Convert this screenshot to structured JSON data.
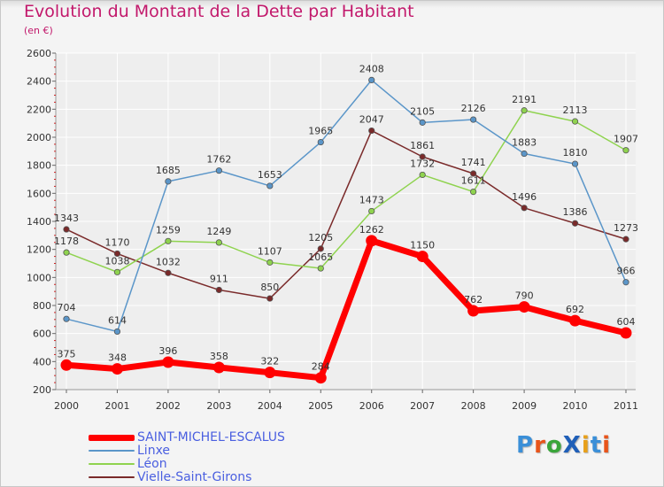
{
  "title": "Evolution du Montant de la Dette par Habitant",
  "subtitle": "(en €)",
  "logo": {
    "text": "ProXiti",
    "colors": [
      "#3a8fd8",
      "#e8541a",
      "#3aa53a",
      "#1f5fb8",
      "#e8a01a",
      "#3a8fd8",
      "#e8541a"
    ]
  },
  "chart_data": {
    "type": "line",
    "categories": [
      "2000",
      "2001",
      "2002",
      "2003",
      "2004",
      "2005",
      "2006",
      "2007",
      "2008",
      "2009",
      "2010",
      "2011"
    ],
    "ylim": [
      200,
      2600
    ],
    "yticks": [
      200,
      400,
      600,
      800,
      1000,
      1200,
      1400,
      1600,
      1800,
      2000,
      2200,
      2400,
      2600
    ],
    "grid": true,
    "legend": "bottom-left",
    "series": [
      {
        "name": "Vielle-Saint-Girons",
        "color": "#7a2a2a",
        "values": [
          1343,
          1170,
          1032,
          911,
          850,
          1205,
          2047,
          1861,
          1741,
          1496,
          1386,
          1273
        ]
      },
      {
        "name": "Léon",
        "color": "#8fd34f",
        "values": [
          1178,
          1038,
          1259,
          1249,
          1107,
          1065,
          1473,
          1732,
          1611,
          2191,
          2113,
          1907
        ]
      },
      {
        "name": "Linxe",
        "color": "#5b96c9",
        "values": [
          704,
          614,
          1685,
          1762,
          1653,
          1965,
          2408,
          2105,
          2126,
          1883,
          1810,
          966
        ]
      },
      {
        "name": "SAINT-MICHEL-ESCALUS",
        "color": "#ff0000",
        "values": [
          375,
          348,
          396,
          358,
          322,
          284,
          1262,
          1150,
          762,
          790,
          692,
          604
        ]
      }
    ],
    "legend_order": [
      "SAINT-MICHEL-ESCALUS",
      "Linxe",
      "Léon",
      "Vielle-Saint-Girons"
    ]
  }
}
